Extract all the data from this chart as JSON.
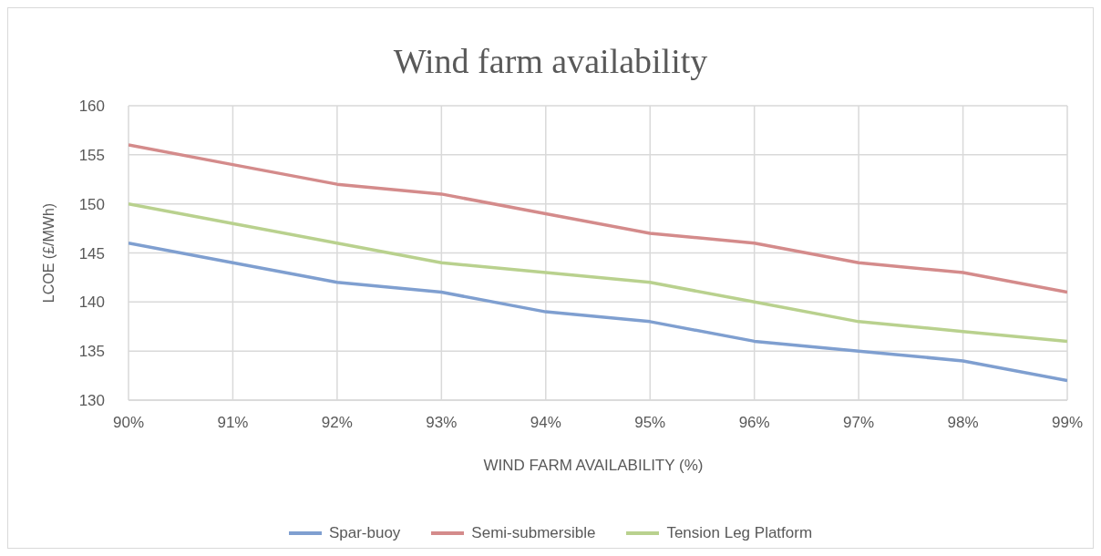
{
  "chart_data": {
    "type": "line",
    "title": "Wind farm availability",
    "xlabel": "WIND FARM AVAILABILITY (%)",
    "ylabel": "LCOE (£/MWh)",
    "categories": [
      "90%",
      "91%",
      "92%",
      "93%",
      "94%",
      "95%",
      "96%",
      "97%",
      "98%",
      "99%"
    ],
    "series": [
      {
        "name": "Spar-buoy",
        "color": "#7f9fd0",
        "values": [
          146,
          144,
          142,
          141,
          139,
          138,
          136,
          135,
          134,
          132
        ]
      },
      {
        "name": "Semi-submersible",
        "color": "#d48b8b",
        "values": [
          156,
          154,
          152,
          151,
          149,
          147,
          146,
          144,
          143,
          141
        ]
      },
      {
        "name": "Tension Leg Platform",
        "color": "#b9d18e",
        "values": [
          150,
          148,
          146,
          144,
          143,
          142,
          140,
          138,
          137,
          136
        ]
      }
    ],
    "ylim": [
      130,
      160
    ],
    "yticks": [
      130,
      135,
      140,
      145,
      150,
      155,
      160
    ],
    "grid": true,
    "legend": "bottom",
    "marker": "none",
    "line_style": "solid"
  }
}
